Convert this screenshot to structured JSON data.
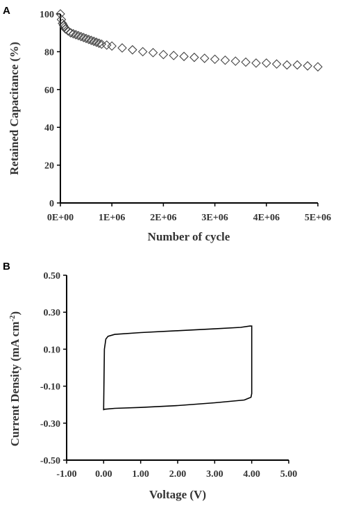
{
  "chart_data": [
    {
      "panel_label": "A",
      "type": "scatter",
      "marker": "diamond",
      "xlabel": "Number of cycle",
      "ylabel": "Retained Capacitance (%)",
      "xlim": [
        0,
        5000000
      ],
      "ylim": [
        0,
        100
      ],
      "x_ticks": [
        0,
        1000000,
        2000000,
        3000000,
        4000000,
        5000000
      ],
      "x_tick_labels": [
        "0E+00",
        "1E+06",
        "2E+06",
        "3E+06",
        "4E+06",
        "5E+06"
      ],
      "y_ticks": [
        0,
        20,
        40,
        60,
        80,
        100
      ],
      "y_tick_labels": [
        "0",
        "20",
        "40",
        "60",
        "80",
        "100"
      ],
      "series": [
        {
          "x": [
            0,
            20000,
            40000,
            60000,
            80000,
            100000,
            150000,
            200000,
            250000,
            300000,
            350000,
            400000,
            450000,
            500000,
            550000,
            600000,
            650000,
            700000,
            750000,
            800000,
            900000,
            1000000,
            1200000,
            1400000,
            1600000,
            1800000,
            2000000,
            2200000,
            2400000,
            2600000,
            2800000,
            3000000,
            3200000,
            3400000,
            3600000,
            3800000,
            4000000,
            4200000,
            4400000,
            4600000,
            4800000,
            5000000
          ],
          "y": [
            100,
            97,
            95,
            94,
            93,
            92,
            91,
            90,
            89.5,
            89,
            88.5,
            88,
            87.5,
            87,
            86.5,
            86,
            85.5,
            85,
            84.5,
            84,
            83.5,
            83,
            82,
            81,
            80,
            79.5,
            78.5,
            78,
            77.5,
            77,
            76.5,
            76,
            75.5,
            75,
            74.5,
            74,
            74,
            73.5,
            73,
            73,
            72.5,
            72
          ]
        }
      ]
    },
    {
      "panel_label": "B",
      "type": "line",
      "xlabel": "Voltage (V)",
      "ylabel": "Current Density (mA cm",
      "ylabel_sup": "-2",
      "ylabel_end": ")",
      "xlim": [
        -1.0,
        5.0
      ],
      "ylim": [
        -0.5,
        0.5
      ],
      "x_ticks": [
        -1,
        0,
        1,
        2,
        3,
        4,
        5
      ],
      "x_tick_labels": [
        "-1.00",
        "0.00",
        "1.00",
        "2.00",
        "3.00",
        "4.00",
        "5.00"
      ],
      "y_ticks": [
        0.5,
        0.3,
        0.1,
        -0.1,
        -0.3,
        -0.5
      ],
      "y_tick_labels": [
        "0.50",
        "0.30",
        "0.10",
        "-0.10",
        "-0.30",
        "-0.50"
      ],
      "series": [
        {
          "x": [
            0.0,
            0.02,
            0.06,
            0.12,
            0.3,
            1.0,
            2.0,
            3.0,
            3.7,
            3.95,
            4.0,
            4.0,
            3.98,
            3.92,
            3.8,
            3.0,
            2.0,
            1.0,
            0.3,
            0.0,
            0.0
          ],
          "y": [
            -0.23,
            0.1,
            0.155,
            0.17,
            0.18,
            0.19,
            0.2,
            0.21,
            0.218,
            0.225,
            0.225,
            -0.14,
            -0.16,
            -0.165,
            -0.175,
            -0.19,
            -0.205,
            -0.215,
            -0.22,
            -0.225,
            -0.23
          ]
        }
      ]
    }
  ]
}
